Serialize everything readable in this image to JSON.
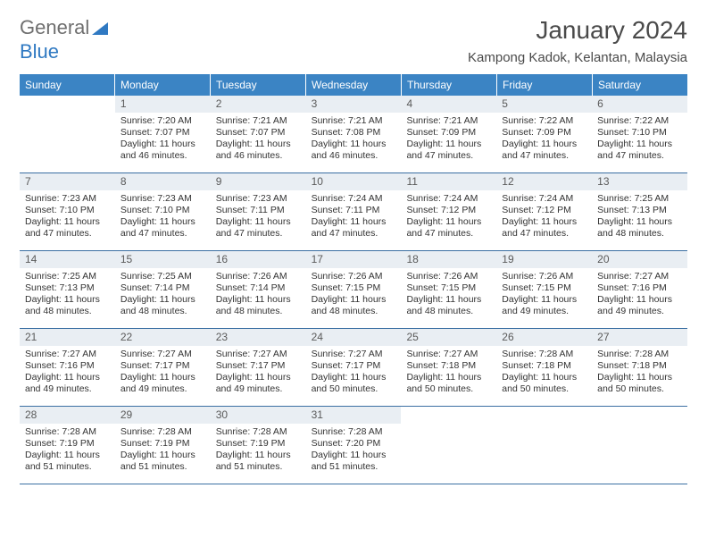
{
  "colors": {
    "header_bg": "#3b84c4",
    "header_text": "#ffffff",
    "daynum_bg": "#e9eef3",
    "daynum_text": "#5a5a5a",
    "rule": "#3b6fa3",
    "body_text": "#333333",
    "logo_gray": "#6f6f6f",
    "logo_blue": "#2f79c2"
  },
  "logo": {
    "word1": "General",
    "word2": "Blue"
  },
  "title": "January 2024",
  "location": "Kampong Kadok, Kelantan, Malaysia",
  "day_headers": [
    "Sunday",
    "Monday",
    "Tuesday",
    "Wednesday",
    "Thursday",
    "Friday",
    "Saturday"
  ],
  "weeks": [
    [
      null,
      {
        "n": "1",
        "sr": "Sunrise: 7:20 AM",
        "ss": "Sunset: 7:07 PM",
        "d1": "Daylight: 11 hours",
        "d2": "and 46 minutes."
      },
      {
        "n": "2",
        "sr": "Sunrise: 7:21 AM",
        "ss": "Sunset: 7:07 PM",
        "d1": "Daylight: 11 hours",
        "d2": "and 46 minutes."
      },
      {
        "n": "3",
        "sr": "Sunrise: 7:21 AM",
        "ss": "Sunset: 7:08 PM",
        "d1": "Daylight: 11 hours",
        "d2": "and 46 minutes."
      },
      {
        "n": "4",
        "sr": "Sunrise: 7:21 AM",
        "ss": "Sunset: 7:09 PM",
        "d1": "Daylight: 11 hours",
        "d2": "and 47 minutes."
      },
      {
        "n": "5",
        "sr": "Sunrise: 7:22 AM",
        "ss": "Sunset: 7:09 PM",
        "d1": "Daylight: 11 hours",
        "d2": "and 47 minutes."
      },
      {
        "n": "6",
        "sr": "Sunrise: 7:22 AM",
        "ss": "Sunset: 7:10 PM",
        "d1": "Daylight: 11 hours",
        "d2": "and 47 minutes."
      }
    ],
    [
      {
        "n": "7",
        "sr": "Sunrise: 7:23 AM",
        "ss": "Sunset: 7:10 PM",
        "d1": "Daylight: 11 hours",
        "d2": "and 47 minutes."
      },
      {
        "n": "8",
        "sr": "Sunrise: 7:23 AM",
        "ss": "Sunset: 7:10 PM",
        "d1": "Daylight: 11 hours",
        "d2": "and 47 minutes."
      },
      {
        "n": "9",
        "sr": "Sunrise: 7:23 AM",
        "ss": "Sunset: 7:11 PM",
        "d1": "Daylight: 11 hours",
        "d2": "and 47 minutes."
      },
      {
        "n": "10",
        "sr": "Sunrise: 7:24 AM",
        "ss": "Sunset: 7:11 PM",
        "d1": "Daylight: 11 hours",
        "d2": "and 47 minutes."
      },
      {
        "n": "11",
        "sr": "Sunrise: 7:24 AM",
        "ss": "Sunset: 7:12 PM",
        "d1": "Daylight: 11 hours",
        "d2": "and 47 minutes."
      },
      {
        "n": "12",
        "sr": "Sunrise: 7:24 AM",
        "ss": "Sunset: 7:12 PM",
        "d1": "Daylight: 11 hours",
        "d2": "and 47 minutes."
      },
      {
        "n": "13",
        "sr": "Sunrise: 7:25 AM",
        "ss": "Sunset: 7:13 PM",
        "d1": "Daylight: 11 hours",
        "d2": "and 48 minutes."
      }
    ],
    [
      {
        "n": "14",
        "sr": "Sunrise: 7:25 AM",
        "ss": "Sunset: 7:13 PM",
        "d1": "Daylight: 11 hours",
        "d2": "and 48 minutes."
      },
      {
        "n": "15",
        "sr": "Sunrise: 7:25 AM",
        "ss": "Sunset: 7:14 PM",
        "d1": "Daylight: 11 hours",
        "d2": "and 48 minutes."
      },
      {
        "n": "16",
        "sr": "Sunrise: 7:26 AM",
        "ss": "Sunset: 7:14 PM",
        "d1": "Daylight: 11 hours",
        "d2": "and 48 minutes."
      },
      {
        "n": "17",
        "sr": "Sunrise: 7:26 AM",
        "ss": "Sunset: 7:15 PM",
        "d1": "Daylight: 11 hours",
        "d2": "and 48 minutes."
      },
      {
        "n": "18",
        "sr": "Sunrise: 7:26 AM",
        "ss": "Sunset: 7:15 PM",
        "d1": "Daylight: 11 hours",
        "d2": "and 48 minutes."
      },
      {
        "n": "19",
        "sr": "Sunrise: 7:26 AM",
        "ss": "Sunset: 7:15 PM",
        "d1": "Daylight: 11 hours",
        "d2": "and 49 minutes."
      },
      {
        "n": "20",
        "sr": "Sunrise: 7:27 AM",
        "ss": "Sunset: 7:16 PM",
        "d1": "Daylight: 11 hours",
        "d2": "and 49 minutes."
      }
    ],
    [
      {
        "n": "21",
        "sr": "Sunrise: 7:27 AM",
        "ss": "Sunset: 7:16 PM",
        "d1": "Daylight: 11 hours",
        "d2": "and 49 minutes."
      },
      {
        "n": "22",
        "sr": "Sunrise: 7:27 AM",
        "ss": "Sunset: 7:17 PM",
        "d1": "Daylight: 11 hours",
        "d2": "and 49 minutes."
      },
      {
        "n": "23",
        "sr": "Sunrise: 7:27 AM",
        "ss": "Sunset: 7:17 PM",
        "d1": "Daylight: 11 hours",
        "d2": "and 49 minutes."
      },
      {
        "n": "24",
        "sr": "Sunrise: 7:27 AM",
        "ss": "Sunset: 7:17 PM",
        "d1": "Daylight: 11 hours",
        "d2": "and 50 minutes."
      },
      {
        "n": "25",
        "sr": "Sunrise: 7:27 AM",
        "ss": "Sunset: 7:18 PM",
        "d1": "Daylight: 11 hours",
        "d2": "and 50 minutes."
      },
      {
        "n": "26",
        "sr": "Sunrise: 7:28 AM",
        "ss": "Sunset: 7:18 PM",
        "d1": "Daylight: 11 hours",
        "d2": "and 50 minutes."
      },
      {
        "n": "27",
        "sr": "Sunrise: 7:28 AM",
        "ss": "Sunset: 7:18 PM",
        "d1": "Daylight: 11 hours",
        "d2": "and 50 minutes."
      }
    ],
    [
      {
        "n": "28",
        "sr": "Sunrise: 7:28 AM",
        "ss": "Sunset: 7:19 PM",
        "d1": "Daylight: 11 hours",
        "d2": "and 51 minutes."
      },
      {
        "n": "29",
        "sr": "Sunrise: 7:28 AM",
        "ss": "Sunset: 7:19 PM",
        "d1": "Daylight: 11 hours",
        "d2": "and 51 minutes."
      },
      {
        "n": "30",
        "sr": "Sunrise: 7:28 AM",
        "ss": "Sunset: 7:19 PM",
        "d1": "Daylight: 11 hours",
        "d2": "and 51 minutes."
      },
      {
        "n": "31",
        "sr": "Sunrise: 7:28 AM",
        "ss": "Sunset: 7:20 PM",
        "d1": "Daylight: 11 hours",
        "d2": "and 51 minutes."
      },
      null,
      null,
      null
    ]
  ]
}
